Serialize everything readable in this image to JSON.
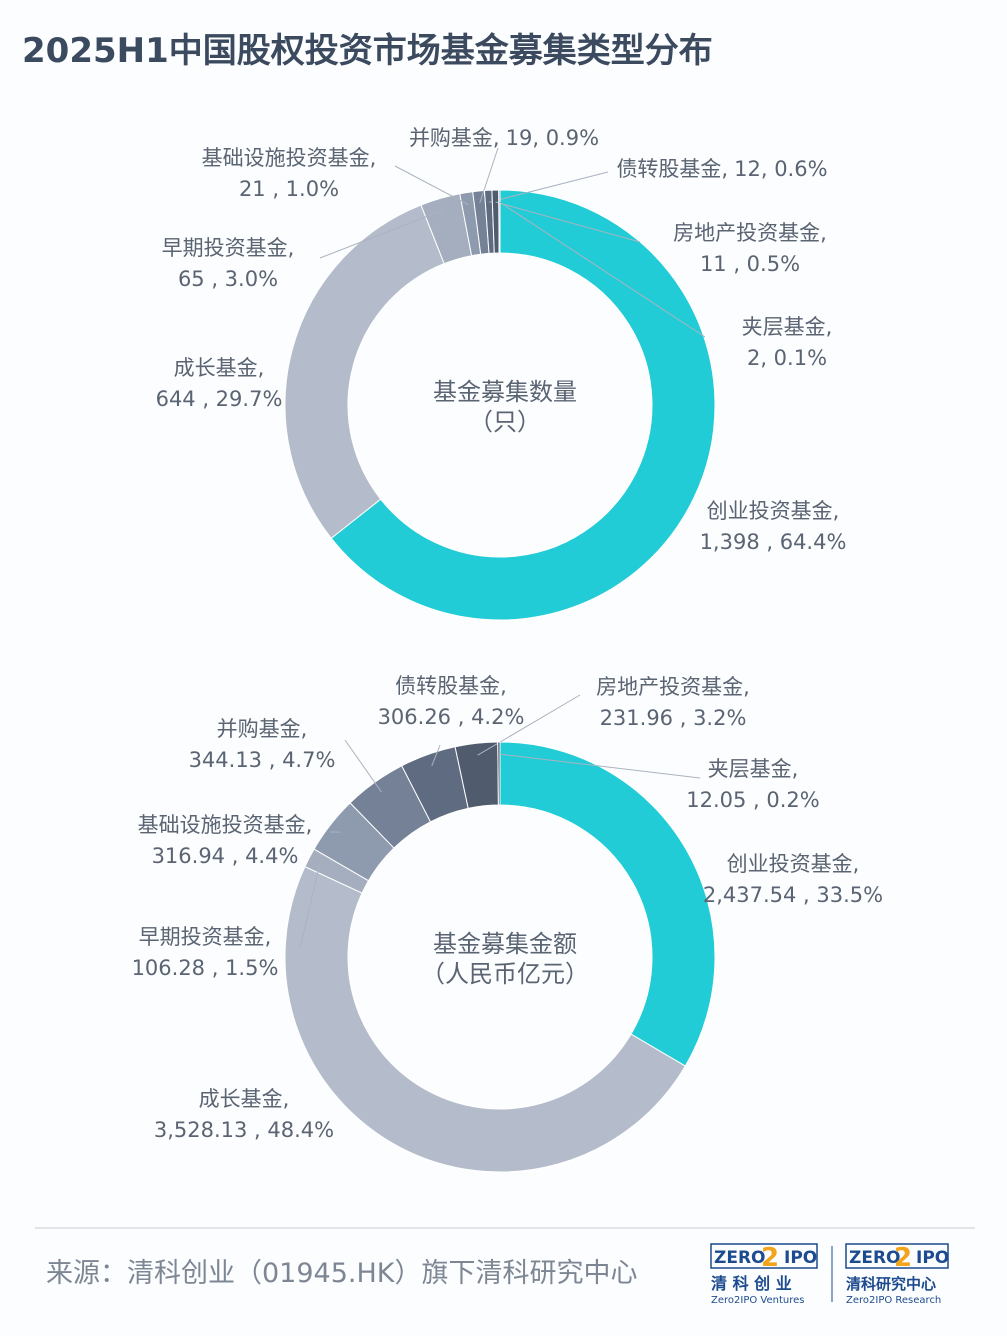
{
  "title": "2025H1中国股权投资市场基金募集类型分布",
  "chart_data": [
    {
      "type": "donut",
      "center_label": [
        "基金募集数量",
        "（只）"
      ],
      "categories": [
        "创业投资基金,",
        "成长基金,",
        "早期投资基金,",
        "基础设施投资基金,",
        "并购基金,",
        "债转股基金,",
        "房地产投资基金,",
        "夹层基金,"
      ],
      "values": [
        1398,
        644,
        65,
        21,
        19,
        12,
        11,
        2
      ],
      "value_labels": [
        "1,398 , 64.4%",
        "644 , 29.7%",
        "65 , 3.0%",
        "21 , 1.0%",
        "19, 0.9%",
        "12, 0.6%",
        "11 , 0.5%",
        "2, 0.1%"
      ],
      "colors": [
        "#22ccd6",
        "#b4bccb",
        "#a4aebf",
        "#8e9aae",
        "#748197",
        "#5f6b80",
        "#505b6e",
        "#3e4757"
      ]
    },
    {
      "type": "donut",
      "center_label": [
        "基金募集金额",
        "（人民币亿元）"
      ],
      "categories": [
        "创业投资基金,",
        "成长基金,",
        "早期投资基金,",
        "基础设施投资基金,",
        "并购基金,",
        "债转股基金,",
        "房地产投资基金,",
        "夹层基金,"
      ],
      "values": [
        2437.54,
        3528.13,
        106.28,
        316.94,
        344.13,
        306.26,
        231.96,
        12.05
      ],
      "value_labels": [
        "2,437.54 , 33.5%",
        "3,528.13 , 48.4%",
        "106.28 , 1.5%",
        "316.94 , 4.4%",
        "344.13 , 4.7%",
        "306.26 , 4.2%",
        "231.96 , 3.2%",
        "12.05 , 0.2%"
      ],
      "colors": [
        "#22ccd6",
        "#b4bccb",
        "#a4aebf",
        "#8e9aae",
        "#748197",
        "#5f6b80",
        "#505b6e",
        "#3e4757"
      ]
    }
  ],
  "source": "来源：清科创业（01945.HK）旗下清科研究中心",
  "logos": [
    {
      "zero": "ZERO",
      "two": "2",
      "ipo": "IPO",
      "name": "清 科 创 业",
      "sub": "Zero2IPO Ventures"
    },
    {
      "zero": "ZERO",
      "two": "2",
      "ipo": "IPO",
      "name": "清科研究中心",
      "sub": "Zero2IPO Research"
    }
  ]
}
